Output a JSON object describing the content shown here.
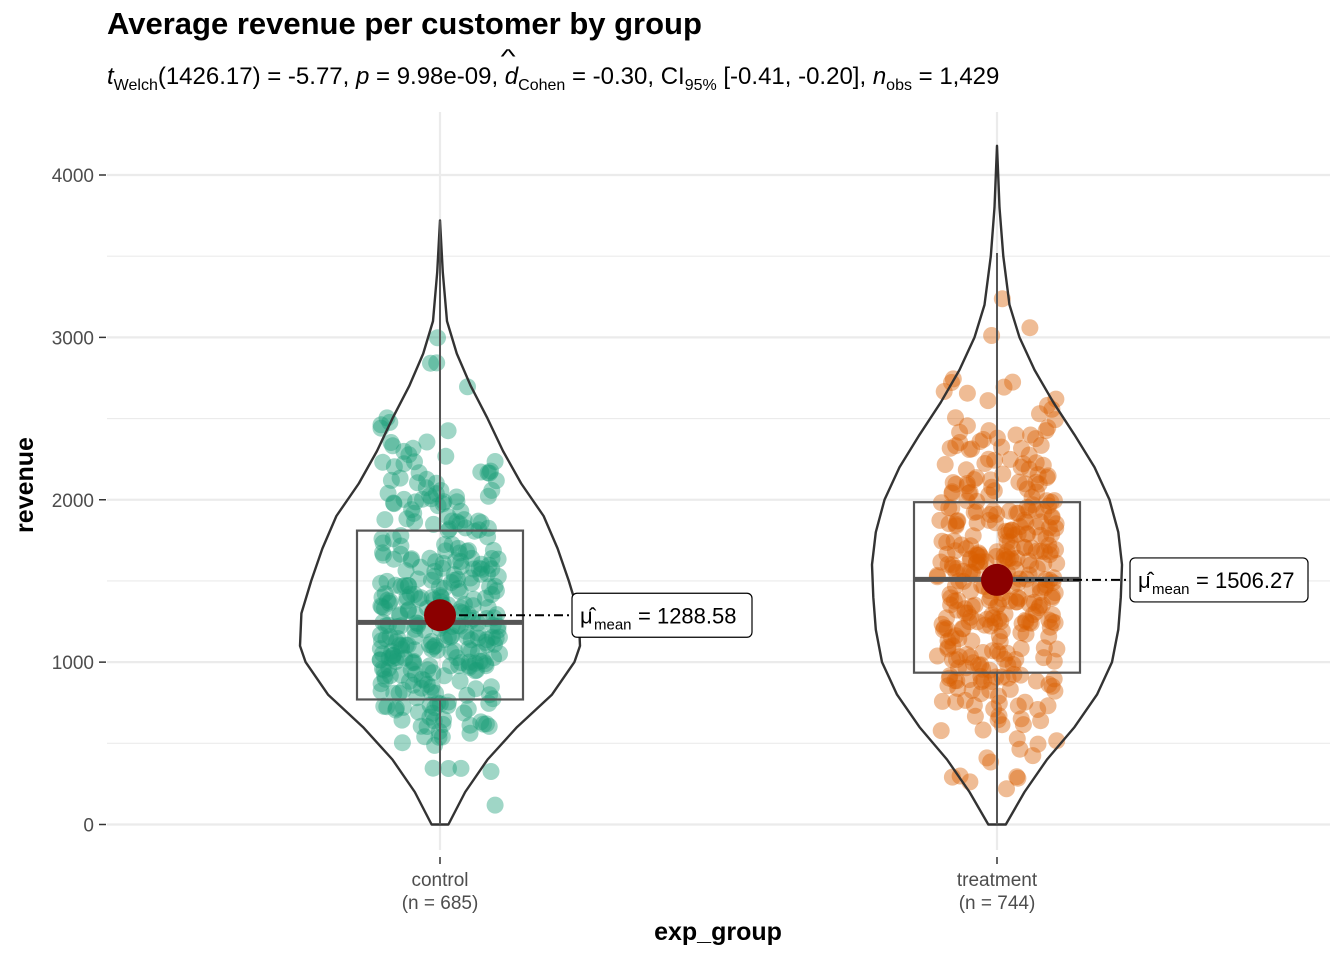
{
  "title": "Average revenue per customer by group",
  "subtitle": {
    "t_symbol": "t",
    "t_sub": "Welch",
    "df_text": "(1426.17) = -5.77, ",
    "p_symbol": "p",
    "p_text": " = 9.98e-09, ",
    "d_symbol": "d",
    "d_sub": "Cohen",
    "d_text": " = -0.30, CI",
    "ci_sub": "95%",
    "ci_text": " [-0.41, -0.20], ",
    "n_symbol": "n",
    "n_sub": "obs",
    "n_text": " = 1,429"
  },
  "colors": {
    "control": "#1b9e77",
    "treatment": "#d95f02",
    "mean_point": "#8b0000",
    "grid": "#ebebeb",
    "outline": "#333333"
  },
  "chart_data": {
    "type": "violin-box-jitter",
    "title": "Average revenue per customer by group",
    "xlabel": "exp_group",
    "ylabel": "revenue",
    "ylim": [
      0,
      4300
    ],
    "yticks": [
      0,
      1000,
      2000,
      3000,
      4000
    ],
    "grid": true,
    "groups": [
      {
        "name": "control",
        "tick_label": "control",
        "n_label": "(n = 685)",
        "n": 685,
        "mean": 1288.58,
        "mean_label": "= 1288.58",
        "box": {
          "q1": 770,
          "median": 1245,
          "q3": 1810,
          "whisker_low": 0,
          "whisker_high": 3720
        },
        "violin": [
          [
            0,
            0.06
          ],
          [
            200,
            0.18
          ],
          [
            400,
            0.34
          ],
          [
            600,
            0.55
          ],
          [
            800,
            0.8
          ],
          [
            1000,
            0.96
          ],
          [
            1100,
            1.0
          ],
          [
            1300,
            0.99
          ],
          [
            1500,
            0.92
          ],
          [
            1700,
            0.84
          ],
          [
            1900,
            0.74
          ],
          [
            2100,
            0.58
          ],
          [
            2300,
            0.45
          ],
          [
            2500,
            0.34
          ],
          [
            2700,
            0.22
          ],
          [
            2900,
            0.12
          ],
          [
            3100,
            0.05
          ],
          [
            3400,
            0.02
          ],
          [
            3720,
            0.0
          ]
        ],
        "min": 0,
        "max": 3720
      },
      {
        "name": "treatment",
        "tick_label": "treatment",
        "n_label": "(n = 744)",
        "n": 744,
        "mean": 1506.27,
        "mean_label": "= 1506.27",
        "box": {
          "q1": 935,
          "median": 1510,
          "q3": 1985,
          "whisker_low": 0,
          "whisker_high": 3520
        },
        "violin": [
          [
            0,
            0.07
          ],
          [
            200,
            0.22
          ],
          [
            400,
            0.4
          ],
          [
            600,
            0.62
          ],
          [
            800,
            0.8
          ],
          [
            1000,
            0.92
          ],
          [
            1200,
            0.97
          ],
          [
            1400,
            0.99
          ],
          [
            1600,
            1.0
          ],
          [
            1800,
            0.97
          ],
          [
            2000,
            0.9
          ],
          [
            2200,
            0.78
          ],
          [
            2400,
            0.62
          ],
          [
            2600,
            0.45
          ],
          [
            2800,
            0.3
          ],
          [
            3000,
            0.18
          ],
          [
            3200,
            0.1
          ],
          [
            3500,
            0.05
          ],
          [
            3800,
            0.02
          ],
          [
            4180,
            0.0
          ]
        ],
        "min": 0,
        "max": 4180
      }
    ]
  }
}
